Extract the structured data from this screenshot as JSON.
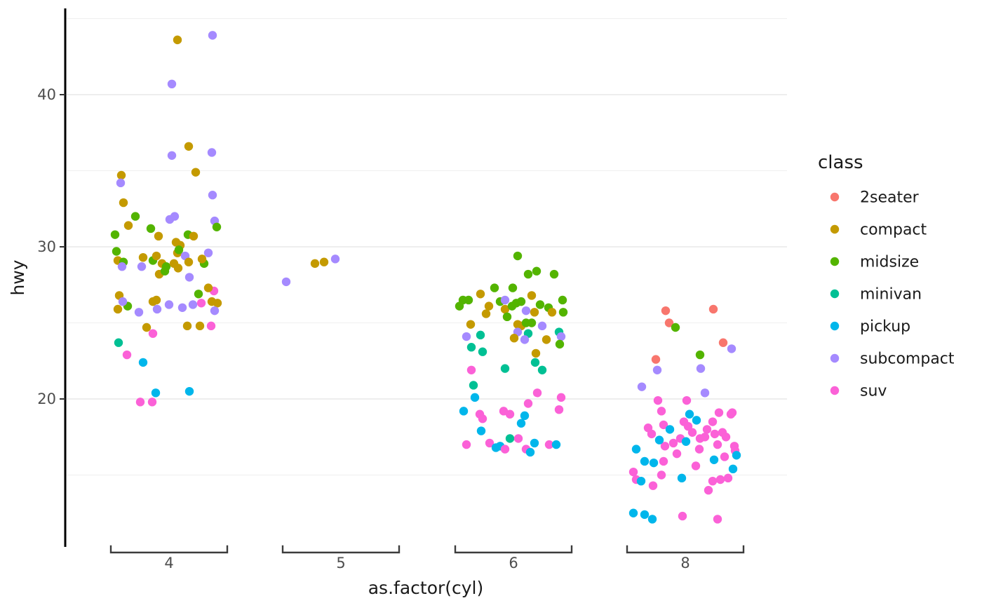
{
  "chart_data": {
    "type": "scatter",
    "title": "",
    "xlabel": "as.factor(cyl)",
    "ylabel": "hwy",
    "x_categories": [
      "4",
      "5",
      "6",
      "8"
    ],
    "y_ticks": [
      20,
      30,
      40
    ],
    "y_gridlines_major": [
      20,
      30,
      40
    ],
    "y_gridlines_minor": [
      15,
      25,
      35,
      45
    ],
    "ylim": [
      10.5,
      45.5
    ],
    "grid": "on",
    "legend_title": "class",
    "legend_position": "right",
    "classes": [
      {
        "name": "2seater",
        "color": "#F8766D"
      },
      {
        "name": "compact",
        "color": "#C49A00"
      },
      {
        "name": "midsize",
        "color": "#53B400"
      },
      {
        "name": "minivan",
        "color": "#00C094"
      },
      {
        "name": "pickup",
        "color": "#00B6EB"
      },
      {
        "name": "subcompact",
        "color": "#A58AFF"
      },
      {
        "name": "suv",
        "color": "#FB61D7"
      }
    ],
    "points_format": [
      "cyl_category_index",
      "hwy",
      "class_index",
      "x_jitter_px"
    ],
    "points": [
      [
        0,
        43.6,
        1,
        12
      ],
      [
        0,
        43.9,
        5,
        62
      ],
      [
        0,
        40.7,
        5,
        4
      ],
      [
        0,
        36.6,
        1,
        28
      ],
      [
        0,
        36.0,
        5,
        4
      ],
      [
        0,
        36.2,
        5,
        61
      ],
      [
        0,
        34.7,
        1,
        -68
      ],
      [
        0,
        34.2,
        5,
        -69
      ],
      [
        0,
        34.9,
        1,
        38
      ],
      [
        0,
        33.4,
        5,
        62
      ],
      [
        0,
        32.9,
        1,
        -65
      ],
      [
        0,
        32.0,
        2,
        -48
      ],
      [
        0,
        31.4,
        1,
        -58
      ],
      [
        0,
        31.8,
        5,
        1
      ],
      [
        0,
        32.0,
        5,
        8
      ],
      [
        0,
        31.7,
        5,
        65
      ],
      [
        0,
        31.3,
        2,
        68
      ],
      [
        0,
        31.2,
        2,
        -26
      ],
      [
        0,
        30.7,
        1,
        -15
      ],
      [
        0,
        30.8,
        2,
        -77
      ],
      [
        0,
        30.8,
        2,
        27
      ],
      [
        0,
        30.7,
        1,
        35
      ],
      [
        0,
        30.3,
        1,
        10
      ],
      [
        0,
        30.1,
        1,
        16
      ],
      [
        0,
        29.7,
        2,
        -75
      ],
      [
        0,
        29.1,
        1,
        -73
      ],
      [
        0,
        29.0,
        2,
        -65
      ],
      [
        0,
        28.7,
        5,
        -67
      ],
      [
        0,
        29.3,
        1,
        -37
      ],
      [
        0,
        28.7,
        5,
        -39
      ],
      [
        0,
        29.1,
        2,
        -23
      ],
      [
        0,
        29.4,
        1,
        -18
      ],
      [
        0,
        28.9,
        1,
        -10
      ],
      [
        0,
        28.7,
        2,
        -4
      ],
      [
        0,
        29.6,
        1,
        12
      ],
      [
        0,
        29.8,
        2,
        14
      ],
      [
        0,
        28.6,
        1,
        13
      ],
      [
        0,
        29.4,
        5,
        23
      ],
      [
        0,
        29.0,
        1,
        28
      ],
      [
        0,
        29.6,
        5,
        56
      ],
      [
        0,
        28.9,
        2,
        50
      ],
      [
        0,
        28.2,
        1,
        -14
      ],
      [
        0,
        28.4,
        2,
        -6
      ],
      [
        0,
        28.0,
        5,
        29
      ],
      [
        0,
        27.1,
        6,
        64
      ],
      [
        0,
        27.3,
        1,
        56
      ],
      [
        0,
        26.9,
        2,
        42
      ],
      [
        0,
        26.8,
        1,
        -71
      ],
      [
        0,
        25.9,
        1,
        -73
      ],
      [
        0,
        26.1,
        2,
        -59
      ],
      [
        0,
        26.4,
        5,
        -66
      ],
      [
        0,
        25.7,
        5,
        -43
      ],
      [
        0,
        26.4,
        1,
        -23
      ],
      [
        0,
        25.9,
        5,
        -17
      ],
      [
        0,
        26.2,
        5,
        0
      ],
      [
        0,
        26.2,
        5,
        34
      ],
      [
        0,
        26.3,
        6,
        46
      ],
      [
        0,
        26.3,
        1,
        69
      ],
      [
        0,
        25.8,
        5,
        65
      ],
      [
        0,
        26.4,
        1,
        61
      ],
      [
        0,
        26.5,
        1,
        -18
      ],
      [
        0,
        24.7,
        1,
        -32
      ],
      [
        0,
        24.3,
        6,
        -23
      ],
      [
        0,
        24.8,
        1,
        26
      ],
      [
        0,
        24.8,
        1,
        44
      ],
      [
        0,
        24.8,
        6,
        60
      ],
      [
        0,
        23.7,
        3,
        -72
      ],
      [
        0,
        22.9,
        6,
        -60
      ],
      [
        0,
        22.4,
        4,
        -37
      ],
      [
        0,
        20.4,
        4,
        -19
      ],
      [
        0,
        20.5,
        4,
        29
      ],
      [
        0,
        19.8,
        6,
        -41
      ],
      [
        0,
        19.8,
        6,
        -24
      ],
      [
        0,
        28.9,
        1,
        7
      ],
      [
        0,
        26.0,
        5,
        19
      ],
      [
        0,
        29.2,
        1,
        47
      ],
      [
        1,
        28.9,
        1,
        -37
      ],
      [
        1,
        29.0,
        1,
        -24
      ],
      [
        1,
        29.2,
        5,
        -8
      ],
      [
        1,
        27.7,
        5,
        -78
      ],
      [
        2,
        29.4,
        2,
        6
      ],
      [
        2,
        28.2,
        2,
        21
      ],
      [
        2,
        28.4,
        2,
        33
      ],
      [
        2,
        28.2,
        2,
        58
      ],
      [
        2,
        27.3,
        2,
        -27
      ],
      [
        2,
        27.3,
        2,
        -1
      ],
      [
        2,
        26.9,
        1,
        -47
      ],
      [
        2,
        26.8,
        1,
        26
      ],
      [
        2,
        26.5,
        2,
        -72
      ],
      [
        2,
        26.5,
        2,
        -64
      ],
      [
        2,
        26.1,
        2,
        -77
      ],
      [
        2,
        26.1,
        1,
        -35
      ],
      [
        2,
        26.4,
        2,
        -19
      ],
      [
        2,
        26.5,
        5,
        -12
      ],
      [
        2,
        25.9,
        1,
        -12
      ],
      [
        2,
        26.1,
        2,
        -2
      ],
      [
        2,
        26.3,
        2,
        4
      ],
      [
        2,
        26.4,
        2,
        11
      ],
      [
        2,
        25.7,
        1,
        30
      ],
      [
        2,
        25.8,
        5,
        18
      ],
      [
        2,
        25.6,
        1,
        -39
      ],
      [
        2,
        26.2,
        2,
        38
      ],
      [
        2,
        26.0,
        2,
        50
      ],
      [
        2,
        25.7,
        1,
        55
      ],
      [
        2,
        26.5,
        2,
        70
      ],
      [
        2,
        25.7,
        2,
        71
      ],
      [
        2,
        25.4,
        2,
        -9
      ],
      [
        2,
        24.9,
        1,
        -61
      ],
      [
        2,
        24.9,
        1,
        6
      ],
      [
        2,
        24.8,
        1,
        11
      ],
      [
        2,
        25.0,
        2,
        18
      ],
      [
        2,
        25.0,
        2,
        26
      ],
      [
        2,
        24.8,
        5,
        41
      ],
      [
        2,
        24.1,
        5,
        -67
      ],
      [
        2,
        24.2,
        3,
        -47
      ],
      [
        2,
        24.4,
        5,
        6
      ],
      [
        2,
        24.3,
        3,
        21
      ],
      [
        2,
        24.4,
        3,
        65
      ],
      [
        2,
        24.1,
        5,
        68
      ],
      [
        2,
        24.0,
        1,
        1
      ],
      [
        2,
        23.9,
        5,
        16
      ],
      [
        2,
        23.9,
        1,
        47
      ],
      [
        2,
        23.6,
        2,
        66
      ],
      [
        2,
        23.4,
        3,
        -60
      ],
      [
        2,
        23.1,
        3,
        -44
      ],
      [
        2,
        23.0,
        1,
        32
      ],
      [
        2,
        22.4,
        3,
        31
      ],
      [
        2,
        21.9,
        6,
        -60
      ],
      [
        2,
        22.0,
        3,
        -12
      ],
      [
        2,
        21.9,
        3,
        41
      ],
      [
        2,
        20.9,
        3,
        -57
      ],
      [
        2,
        20.1,
        4,
        -55
      ],
      [
        2,
        20.4,
        6,
        34
      ],
      [
        2,
        20.1,
        6,
        68
      ],
      [
        2,
        19.7,
        6,
        21
      ],
      [
        2,
        19.3,
        6,
        65
      ],
      [
        2,
        19.2,
        4,
        -71
      ],
      [
        2,
        19.0,
        6,
        -48
      ],
      [
        2,
        18.7,
        6,
        -44
      ],
      [
        2,
        19.2,
        6,
        -14
      ],
      [
        2,
        19.0,
        6,
        -5
      ],
      [
        2,
        18.9,
        4,
        16
      ],
      [
        2,
        18.4,
        4,
        11
      ],
      [
        2,
        17.9,
        4,
        -46
      ],
      [
        2,
        17.1,
        6,
        -34
      ],
      [
        2,
        16.8,
        4,
        -25
      ],
      [
        2,
        16.9,
        4,
        -19
      ],
      [
        2,
        16.7,
        6,
        -12
      ],
      [
        2,
        17.4,
        3,
        -5
      ],
      [
        2,
        17.4,
        6,
        7
      ],
      [
        2,
        16.7,
        6,
        18
      ],
      [
        2,
        16.5,
        4,
        24
      ],
      [
        2,
        17.1,
        4,
        30
      ],
      [
        2,
        17.0,
        6,
        51
      ],
      [
        2,
        17.0,
        4,
        61
      ],
      [
        2,
        17.0,
        6,
        -67
      ],
      [
        3,
        25.8,
        0,
        -28
      ],
      [
        3,
        25.9,
        0,
        40
      ],
      [
        3,
        25.0,
        0,
        -23
      ],
      [
        3,
        24.7,
        2,
        -14
      ],
      [
        3,
        23.7,
        0,
        54
      ],
      [
        3,
        23.3,
        5,
        66
      ],
      [
        3,
        22.6,
        0,
        -42
      ],
      [
        3,
        22.9,
        2,
        21
      ],
      [
        3,
        21.9,
        5,
        -40
      ],
      [
        3,
        22.0,
        5,
        22
      ],
      [
        3,
        20.8,
        5,
        -62
      ],
      [
        3,
        20.4,
        5,
        28
      ],
      [
        3,
        19.9,
        6,
        -39
      ],
      [
        3,
        19.9,
        6,
        2
      ],
      [
        3,
        19.2,
        6,
        -34
      ],
      [
        3,
        19.1,
        6,
        48
      ],
      [
        3,
        19.1,
        6,
        67
      ],
      [
        3,
        19.0,
        4,
        6
      ],
      [
        3,
        18.6,
        4,
        16
      ],
      [
        3,
        18.5,
        6,
        -2
      ],
      [
        3,
        19.0,
        6,
        65
      ],
      [
        3,
        18.3,
        6,
        -31
      ],
      [
        3,
        18.5,
        6,
        39
      ],
      [
        3,
        18.1,
        6,
        -53
      ],
      [
        3,
        17.7,
        6,
        -48
      ],
      [
        3,
        18.2,
        6,
        4
      ],
      [
        3,
        17.7,
        6,
        42
      ],
      [
        3,
        17.8,
        6,
        53
      ],
      [
        3,
        17.5,
        6,
        58
      ],
      [
        3,
        17.4,
        6,
        -7
      ],
      [
        3,
        17.4,
        6,
        21
      ],
      [
        3,
        17.5,
        6,
        28
      ],
      [
        3,
        17.2,
        4,
        1
      ],
      [
        3,
        17.1,
        6,
        -17
      ],
      [
        3,
        16.9,
        6,
        -29
      ],
      [
        3,
        16.7,
        4,
        -70
      ],
      [
        3,
        16.7,
        6,
        20
      ],
      [
        3,
        16.9,
        6,
        70
      ],
      [
        3,
        16.6,
        6,
        71
      ],
      [
        3,
        16.3,
        4,
        73
      ],
      [
        3,
        17.0,
        6,
        46
      ],
      [
        3,
        15.9,
        4,
        -58
      ],
      [
        3,
        15.8,
        4,
        -45
      ],
      [
        3,
        15.9,
        6,
        -31
      ],
      [
        3,
        16.0,
        4,
        41
      ],
      [
        3,
        16.2,
        6,
        56
      ],
      [
        3,
        15.4,
        4,
        68
      ],
      [
        3,
        15.2,
        6,
        -74
      ],
      [
        3,
        14.7,
        6,
        -70
      ],
      [
        3,
        14.6,
        4,
        -63
      ],
      [
        3,
        15.0,
        6,
        -34
      ],
      [
        3,
        14.8,
        4,
        -5
      ],
      [
        3,
        14.0,
        6,
        33
      ],
      [
        3,
        14.6,
        6,
        39
      ],
      [
        3,
        14.7,
        6,
        50
      ],
      [
        3,
        14.8,
        6,
        61
      ],
      [
        3,
        14.3,
        6,
        -46
      ],
      [
        3,
        12.5,
        4,
        -74
      ],
      [
        3,
        12.4,
        4,
        -58
      ],
      [
        3,
        12.1,
        4,
        -47
      ],
      [
        3,
        12.3,
        6,
        -4
      ],
      [
        3,
        12.1,
        6,
        46
      ],
      [
        3,
        17.8,
        6,
        10
      ],
      [
        3,
        18.0,
        6,
        31
      ],
      [
        3,
        18.0,
        4,
        -22
      ],
      [
        3,
        17.3,
        4,
        -37
      ],
      [
        3,
        15.6,
        6,
        15
      ],
      [
        3,
        16.4,
        6,
        -12
      ]
    ],
    "style": {
      "grid_major_color": "#E3E3E3",
      "grid_minor_color": "#EFEFEF",
      "axis_line_color": "#000000",
      "bracket_color": "#3C3C3C",
      "tick_label_color": "#4D4D4D",
      "point_radius": 6.2
    }
  }
}
